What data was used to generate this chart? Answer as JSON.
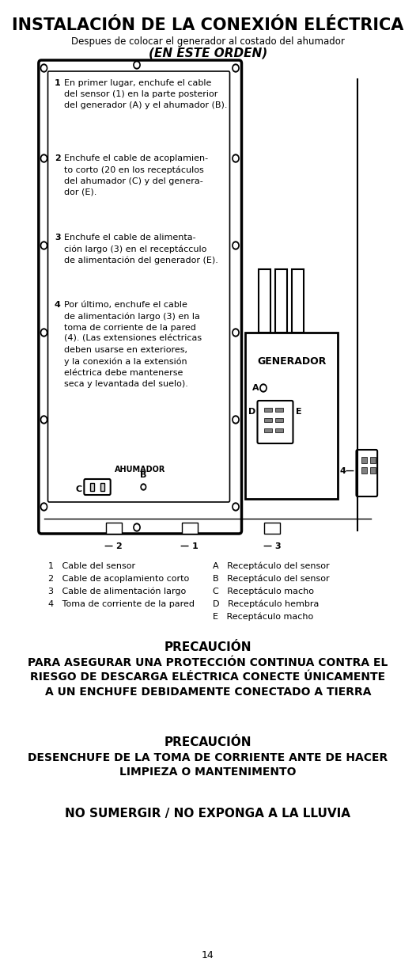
{
  "title": "INSTALACIÓN DE LA CONEXIÓN ELÉCTRICA",
  "subtitle": "Despues de colocar el generador al costado del ahumador",
  "subtitle2": "(EN ESTE ORDEN)",
  "instructions": [
    {
      "num": "1",
      "text": "En primer lugar, enchufe el cable\ndel sensor (1) en la parte posterior\ndel generador (A) y el ahumador (B)."
    },
    {
      "num": "2",
      "text": "Enchufe el cable de acoplamiento corto (20 en los receptáculos\ndel ahumador (C) y del generador (E)."
    },
    {
      "num": "3",
      "text": "Enchufe el cable de alimentación largo (3) en el receptácculo\nde alimentación del generador (E)."
    },
    {
      "num": "4",
      "text": "Por último, enchufe el cable\nde alimentación largo (3) en la\ntoma de corriente de la pared\n(4). (Las extensiones eléctricas\ndeben usarse en exteriores,\ny la conexión a la extensión\neléctrica debe mantenerse\nseca y levantada del suelo)."
    }
  ],
  "legend_left": [
    "1   Cable del sensor",
    "2   Cable de acoplamiento corto",
    "3   Cable de alimentación largo",
    "4   Toma de corriente de la pared"
  ],
  "legend_right": [
    "A   Receptáculo del sensor",
    "B   Receptáculo del sensor",
    "C   Receptáculo macho",
    "D   Receptáculo hembra",
    "E   Receptáculo macho"
  ],
  "caution1_title": "PRECAUCIÓN",
  "caution1_body": "PARA ASEGURAR UNA PROTECCIÓN CONTINUA CONTRA EL\nRIESGO DE DESCARGA ELÉCTRICA CONECTE ÚNICAMENTE\nA UN ENCHUFE DEBIDAMENTE CONECTADO A TIERRA",
  "caution2_title": "PRECAUCIÓN",
  "caution2_body": "DESENCHUFE DE LA TOMA DE CORRIENTE ANTE DE HACER\nLIMPIEZA O MANTENIMENTO",
  "caution3": "NO SUMERGIR / NO EXPONGA A LA LLUVIA",
  "page": "14",
  "bg_color": "#ffffff",
  "text_color": "#000000"
}
